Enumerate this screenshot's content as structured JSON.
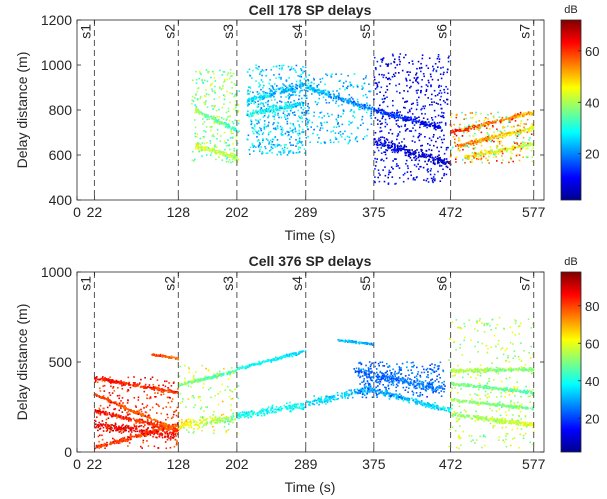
{
  "chart_data": [
    {
      "type": "scatter",
      "title": "Cell 178 SP delays",
      "xlabel": "Time (s)",
      "ylabel": "Delay distance (m)",
      "xlim": [
        0,
        590
      ],
      "ylim": [
        400,
        1200
      ],
      "xticks": [
        0,
        22,
        128,
        202,
        289,
        375,
        472,
        577
      ],
      "yticks": [
        400,
        600,
        800,
        1000,
        1200
      ],
      "colorbar": {
        "label": "dB",
        "ticks": [
          20,
          40,
          60
        ],
        "range": [
          2,
          72
        ]
      },
      "markers": [
        {
          "label": "s1",
          "x": 22
        },
        {
          "label": "s2",
          "x": 128
        },
        {
          "label": "s3",
          "x": 202
        },
        {
          "label": "s4",
          "x": 289
        },
        {
          "label": "s5",
          "x": 375
        },
        {
          "label": "s6",
          "x": 472
        },
        {
          "label": "s7",
          "x": 577
        }
      ],
      "segments": [
        {
          "x": [
            150,
            202
          ],
          "y": [
            800,
            710
          ],
          "db": [
            38,
            32
          ],
          "spread": 10
        },
        {
          "x": [
            150,
            202
          ],
          "y": [
            640,
            590
          ],
          "db": [
            45,
            40
          ],
          "spread": 12
        },
        {
          "x": [
            215,
            289
          ],
          "y": [
            840,
            915
          ],
          "db": [
            28,
            20
          ],
          "spread": 14
        },
        {
          "x": [
            215,
            289
          ],
          "y": [
            780,
            830
          ],
          "db": [
            32,
            25
          ],
          "spread": 12
        },
        {
          "x": [
            289,
            375
          ],
          "y": [
            905,
            800
          ],
          "db": [
            25,
            18
          ],
          "spread": 12
        },
        {
          "x": [
            375,
            460
          ],
          "y": [
            800,
            720
          ],
          "db": [
            15,
            10
          ],
          "spread": 12
        },
        {
          "x": [
            375,
            472
          ],
          "y": [
            660,
            560
          ],
          "db": [
            10,
            5
          ],
          "spread": 20
        },
        {
          "x": [
            472,
            577
          ],
          "y": [
            700,
            790
          ],
          "db": [
            62,
            50
          ],
          "spread": 8
        },
        {
          "x": [
            480,
            577
          ],
          "y": [
            640,
            720
          ],
          "db": [
            56,
            44
          ],
          "spread": 10
        },
        {
          "x": [
            490,
            577
          ],
          "y": [
            590,
            650
          ],
          "db": [
            50,
            40
          ],
          "spread": 10
        }
      ],
      "clouds": [
        {
          "x": [
            145,
            205
          ],
          "y": [
            560,
            980
          ],
          "db": [
            30,
            45
          ],
          "n": 260
        },
        {
          "x": [
            215,
            290
          ],
          "y": [
            600,
            1000
          ],
          "db": [
            18,
            32
          ],
          "n": 480
        },
        {
          "x": [
            290,
            372
          ],
          "y": [
            650,
            960
          ],
          "db": [
            18,
            30
          ],
          "n": 220
        },
        {
          "x": [
            375,
            470
          ],
          "y": [
            470,
            1050
          ],
          "db": [
            5,
            15
          ],
          "n": 520
        },
        {
          "x": [
            470,
            577
          ],
          "y": [
            560,
            790
          ],
          "db": [
            30,
            65
          ],
          "n": 260
        }
      ]
    },
    {
      "type": "scatter",
      "title": "Cell 376 SP delays",
      "xlabel": "Time (s)",
      "ylabel": "Delay distance (m)",
      "xlim": [
        0,
        590
      ],
      "ylim": [
        0,
        1000
      ],
      "xticks": [
        0,
        22,
        128,
        202,
        289,
        375,
        472,
        577
      ],
      "yticks": [
        0,
        500,
        1000
      ],
      "colorbar": {
        "label": "dB",
        "ticks": [
          20,
          40,
          60,
          80
        ],
        "range": [
          2,
          98
        ]
      },
      "markers": [
        {
          "label": "s1",
          "x": 22
        },
        {
          "label": "s2",
          "x": 128
        },
        {
          "label": "s3",
          "x": 202
        },
        {
          "label": "s4",
          "x": 289
        },
        {
          "label": "s5",
          "x": 375
        },
        {
          "label": "s6",
          "x": 472
        },
        {
          "label": "s7",
          "x": 577
        }
      ],
      "segments": [
        {
          "x": [
            22,
            128
          ],
          "y": [
            410,
            330
          ],
          "db": [
            85,
            80
          ],
          "spread": 8
        },
        {
          "x": [
            22,
            128
          ],
          "y": [
            320,
            120
          ],
          "db": [
            80,
            75
          ],
          "spread": 8
        },
        {
          "x": [
            22,
            128
          ],
          "y": [
            230,
            120
          ],
          "db": [
            85,
            80
          ],
          "spread": 10
        },
        {
          "x": [
            22,
            128
          ],
          "y": [
            25,
            150
          ],
          "db": [
            82,
            76
          ],
          "spread": 10
        },
        {
          "x": [
            22,
            128
          ],
          "y": [
            150,
            90
          ],
          "db": [
            90,
            85
          ],
          "spread": 25
        },
        {
          "x": [
            95,
            128
          ],
          "y": [
            540,
            520
          ],
          "db": [
            80,
            75
          ],
          "spread": 6
        },
        {
          "x": [
            128,
            202
          ],
          "y": [
            150,
            190
          ],
          "db": [
            65,
            48
          ],
          "spread": 25
        },
        {
          "x": [
            128,
            202
          ],
          "y": [
            370,
            450
          ],
          "db": [
            50,
            42
          ],
          "spread": 8
        },
        {
          "x": [
            202,
            289
          ],
          "y": [
            200,
            260
          ],
          "db": [
            40,
            38
          ],
          "spread": 22
        },
        {
          "x": [
            202,
            289
          ],
          "y": [
            460,
            560
          ],
          "db": [
            40,
            35
          ],
          "spread": 8
        },
        {
          "x": [
            289,
            375
          ],
          "y": [
            270,
            350
          ],
          "db": [
            36,
            30
          ],
          "spread": 22
        },
        {
          "x": [
            330,
            375
          ],
          "y": [
            620,
            600
          ],
          "db": [
            32,
            30
          ],
          "spread": 5
        },
        {
          "x": [
            350,
            460
          ],
          "y": [
            450,
            350
          ],
          "db": [
            22,
            26
          ],
          "spread": 25
        },
        {
          "x": [
            375,
            472
          ],
          "y": [
            340,
            230
          ],
          "db": [
            30,
            38
          ],
          "spread": 15
        },
        {
          "x": [
            472,
            577
          ],
          "y": [
            210,
            150
          ],
          "db": [
            50,
            60
          ],
          "spread": 12
        },
        {
          "x": [
            472,
            577
          ],
          "y": [
            450,
            460
          ],
          "db": [
            55,
            50
          ],
          "spread": 10
        },
        {
          "x": [
            472,
            577
          ],
          "y": [
            380,
            330
          ],
          "db": [
            50,
            45
          ],
          "spread": 8
        },
        {
          "x": [
            472,
            577
          ],
          "y": [
            290,
            240
          ],
          "db": [
            52,
            48
          ],
          "spread": 8
        }
      ],
      "clouds": [
        {
          "x": [
            22,
            128
          ],
          "y": [
            20,
            420
          ],
          "db": [
            75,
            92
          ],
          "n": 260
        },
        {
          "x": [
            128,
            205
          ],
          "y": [
            100,
            480
          ],
          "db": [
            45,
            70
          ],
          "n": 120
        },
        {
          "x": [
            355,
            465
          ],
          "y": [
            300,
            500
          ],
          "db": [
            18,
            30
          ],
          "n": 260
        },
        {
          "x": [
            470,
            577
          ],
          "y": [
            20,
            750
          ],
          "db": [
            45,
            65
          ],
          "n": 300
        }
      ]
    }
  ]
}
